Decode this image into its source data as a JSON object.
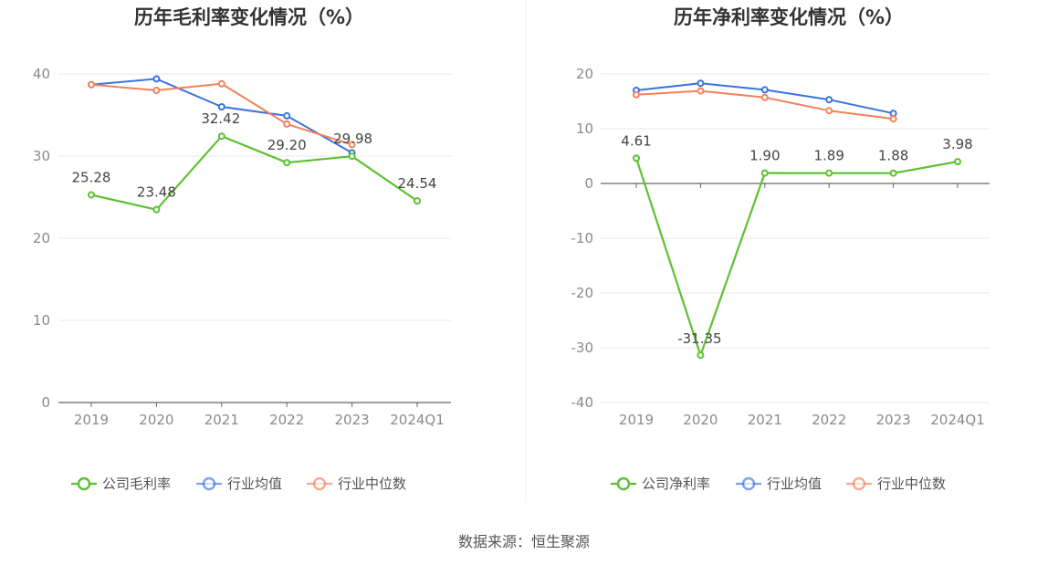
{
  "colors": {
    "company": "#5cc130",
    "industry_avg": "#3a73e0",
    "industry_median": "#f2815a",
    "grid": "#e6e9f0",
    "axis": "#666666"
  },
  "chart_data": [
    {
      "type": "line",
      "title": "历年毛利率变化情况（%）",
      "categories": [
        "2019",
        "2020",
        "2021",
        "2022",
        "2023",
        "2024Q1"
      ],
      "ylim": [
        0,
        40
      ],
      "yticks": [
        0,
        10,
        20,
        30,
        40
      ],
      "series": [
        {
          "name": "公司毛利率",
          "color_key": "company",
          "values": [
            25.28,
            23.48,
            32.42,
            29.2,
            29.98,
            24.54
          ],
          "labels": [
            "25.28",
            "23.48",
            "32.42",
            "29.20",
            "29.98",
            "24.54"
          ]
        },
        {
          "name": "行业均值",
          "color_key": "industry_avg",
          "values": [
            38.7,
            39.4,
            36.0,
            34.9,
            30.4,
            null
          ]
        },
        {
          "name": "行业中位数",
          "color_key": "industry_median",
          "values": [
            38.7,
            38.0,
            38.8,
            33.9,
            31.4,
            null
          ]
        }
      ]
    },
    {
      "type": "line",
      "title": "历年净利率变化情况（%）",
      "categories": [
        "2019",
        "2020",
        "2021",
        "2022",
        "2023",
        "2024Q1"
      ],
      "ylim": [
        -40,
        20
      ],
      "yticks": [
        -40,
        -30,
        -20,
        -10,
        0,
        10,
        20
      ],
      "series": [
        {
          "name": "公司净利率",
          "color_key": "company",
          "values": [
            4.61,
            -31.35,
            1.9,
            1.89,
            1.88,
            3.98
          ],
          "labels": [
            "4.61",
            "-31.35",
            "1.90",
            "1.89",
            "1.88",
            "3.98"
          ]
        },
        {
          "name": "行业均值",
          "color_key": "industry_avg",
          "values": [
            17.0,
            18.3,
            17.1,
            15.3,
            12.8,
            null
          ]
        },
        {
          "name": "行业中位数",
          "color_key": "industry_median",
          "values": [
            16.2,
            16.9,
            15.7,
            13.3,
            11.8,
            null
          ]
        }
      ]
    }
  ],
  "source": "数据来源：恒生聚源"
}
